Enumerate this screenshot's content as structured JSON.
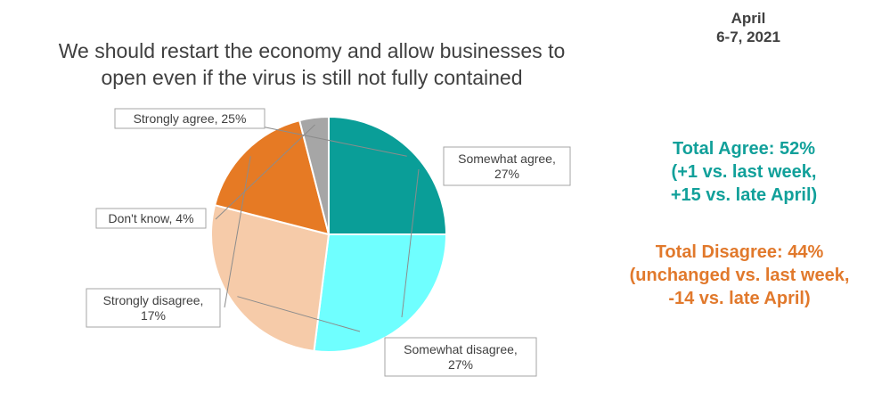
{
  "date": {
    "line1": "April",
    "line2": "6-7, 2021"
  },
  "title": {
    "line1": "We should restart the economy and allow businesses to",
    "line2": "open even if the virus is still not fully contained"
  },
  "chart_data": {
    "type": "pie",
    "title": "We should restart the economy and allow businesses to open even if the virus is still not fully contained",
    "slices": [
      {
        "label": "Strongly agree",
        "value": 25,
        "color": "#0A9E98",
        "label_lines": [
          "Strongly agree, 25%"
        ]
      },
      {
        "label": "Somewhat agree",
        "value": 27,
        "color": "#6FFFFF",
        "label_lines": [
          "Somewhat agree,",
          "27%"
        ]
      },
      {
        "label": "Somewhat disagree",
        "value": 27,
        "color": "#F6CBA9",
        "label_lines": [
          "Somewhat disagree,",
          "27%"
        ]
      },
      {
        "label": "Strongly disagree",
        "value": 17,
        "color": "#E67A24",
        "label_lines": [
          "Strongly disagree,",
          "17%"
        ]
      },
      {
        "label": "Don't know",
        "value": 4,
        "color": "#A6A6A6",
        "label_lines": [
          "Don't know, 4%"
        ]
      }
    ]
  },
  "summary": {
    "agree": {
      "line1": "Total Agree: 52%",
      "line2": "(+1 vs. last week,",
      "line3": "+15 vs. late April)"
    },
    "disagree": {
      "line1": "Total Disagree: 44%",
      "line2": "(unchanged vs. last week,",
      "line3": "-14 vs. late April)"
    }
  }
}
